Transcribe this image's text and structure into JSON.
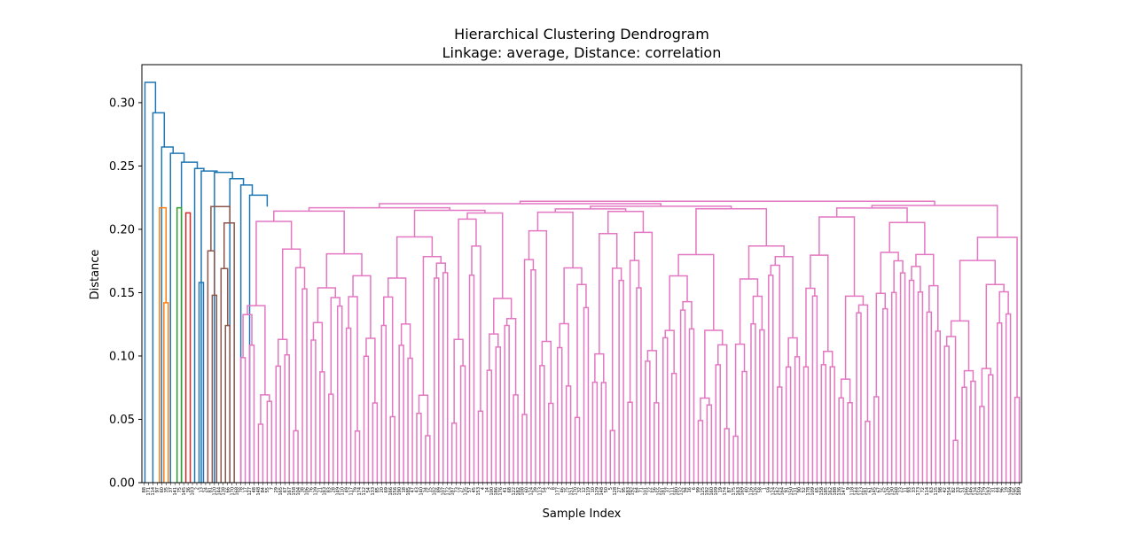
{
  "chart_data": {
    "type": "dendrogram",
    "title": "Hierarchical Clustering Dendrogram",
    "subtitle": "Linkage: average, Distance: correlation",
    "xlabel": "Sample Index",
    "ylabel": "Distance",
    "ylim": [
      0,
      0.33
    ],
    "yticks": [
      "0.00",
      "0.05",
      "0.10",
      "0.15",
      "0.20",
      "0.25",
      "0.30"
    ],
    "grid": false,
    "n_leaves": 200,
    "colors": {
      "root": "#1f77b4",
      "c1": "#ff7f0e",
      "c2": "#2ca02c",
      "c3": "#d62728",
      "c4": "#8c564b",
      "c5": "#e377c2",
      "axis": "#000000"
    },
    "leaf_labels": [
      "88",
      "171",
      "114",
      "97",
      "60",
      "35",
      "37",
      "141",
      "75",
      "145",
      "36",
      "103",
      "2",
      "13",
      "24",
      "81",
      "120",
      "144",
      "138",
      "66",
      "170",
      "168",
      "78",
      "17",
      "127",
      "48",
      "148",
      "84",
      "55",
      "7",
      "29",
      "165",
      "67",
      "167",
      "158",
      "104",
      "38",
      "106",
      "76",
      "139",
      "21",
      "183",
      "83",
      "28",
      "149",
      "110",
      "49",
      "117",
      "79",
      "174",
      "112",
      "54",
      "133",
      "85",
      "20",
      "69",
      "166",
      "156",
      "190",
      "18",
      "185",
      "47",
      "43",
      "140",
      "34",
      "15",
      "102",
      "89",
      "107",
      "172",
      "187",
      "73",
      "27",
      "135",
      "57",
      "45",
      "153",
      "4",
      "14",
      "100",
      "186",
      "176",
      "41",
      "68",
      "122",
      "182",
      "108",
      "60",
      "124",
      "39",
      "113",
      "54",
      "3",
      "8",
      "177",
      "46",
      "75",
      "151",
      "170",
      "32",
      "12",
      "119",
      "10",
      "129",
      "148",
      "50",
      "5",
      "128",
      "27",
      "95",
      "183",
      "192",
      "64",
      "71",
      "101",
      "22",
      "56",
      "155",
      "181",
      "37",
      "111",
      "180",
      "132",
      "94",
      "16",
      "6",
      "99",
      "125",
      "192",
      "160",
      "109",
      "19",
      "174",
      "87",
      "175",
      "163",
      "169",
      "40",
      "116",
      "126",
      "58",
      "1",
      "59",
      "124",
      "142",
      "164",
      "91",
      "150",
      "131",
      "90",
      "52",
      "178",
      "109",
      "65",
      "158",
      "185",
      "162",
      "188",
      "136",
      "147",
      "9",
      "118",
      "144",
      "123",
      "181",
      "61",
      "145",
      "67",
      "25",
      "126",
      "130",
      "168",
      "23",
      "11",
      "93",
      "33",
      "173",
      "72",
      "114",
      "63",
      "115",
      "98",
      "42",
      "154",
      "82",
      "33",
      "51",
      "166",
      "146",
      "134",
      "159",
      "179",
      "193",
      "31",
      "44",
      "96",
      "19",
      "199",
      "195",
      "189"
    ],
    "clusters": [
      {
        "name": "c1",
        "color": "#ff7f0e",
        "leaf_count": 3
      },
      {
        "name": "c2",
        "color": "#2ca02c",
        "leaf_count": 2
      },
      {
        "name": "c3",
        "color": "#d62728",
        "leaf_count": 2
      },
      {
        "name": "c4",
        "color": "#8c564b",
        "leaf_count": 7
      },
      {
        "name": "c5",
        "color": "#e377c2",
        "leaf_count": 175
      }
    ],
    "links": [
      {
        "x": [
          3,
          4,
          5
        ],
        "h": [
          0,
          0.142,
          0
        ],
        "c": "c1"
      },
      {
        "x": [
          2,
          4,
          6
        ],
        "h": [
          0,
          0.217,
          0.142
        ],
        "c": "c1"
      },
      {
        "x": [
          7,
          8
        ],
        "h": [
          0,
          0.217,
          0
        ],
        "c": "c2"
      },
      {
        "x": [
          9,
          10
        ],
        "h": [
          0,
          0.213,
          0
        ],
        "c": "c3"
      },
      {
        "x": [
          12,
          13
        ],
        "h": [
          0,
          0.158,
          0
        ],
        "c": "root"
      },
      {
        "x": [
          15,
          16
        ],
        "h": [
          0,
          0.148,
          0
        ],
        "c": "c4"
      },
      {
        "x": [
          14,
          15.5
        ],
        "h": [
          0,
          0.183,
          0.148
        ],
        "c": "c4"
      },
      {
        "x": [
          18,
          19
        ],
        "h": [
          0,
          0.124,
          0
        ],
        "c": "c4"
      },
      {
        "x": [
          17,
          18.5
        ],
        "h": [
          0,
          0.169,
          0.124
        ],
        "c": "c4"
      },
      {
        "x": [
          17.75,
          20
        ],
        "h": [
          0.169,
          0.205,
          0
        ],
        "c": "c4"
      },
      {
        "x": [
          14.75,
          18.9
        ],
        "h": [
          0.183,
          0.218,
          0.205
        ],
        "c": "c4"
      },
      {
        "x": [
          0,
          1
        ],
        "h": [
          0,
          0.316,
          0
        ],
        "c": "root"
      },
      {
        "x": [
          1,
          2
        ],
        "h": [
          0,
          0.292,
          0
        ],
        "c": "root"
      },
      {
        "x": [
          2,
          3
        ],
        "h": [
          0,
          0.265,
          0
        ],
        "c": "root"
      },
      {
        "x": [
          3,
          4
        ],
        "h": [
          0,
          0.26,
          0
        ],
        "c": "root"
      },
      {
        "x": [
          4,
          5
        ],
        "h": [
          0,
          0.253,
          0
        ],
        "c": "root"
      },
      {
        "x": [
          5,
          6
        ],
        "h": [
          0,
          0.248,
          0
        ],
        "c": "root"
      },
      {
        "x": [
          6,
          7
        ],
        "h": [
          0,
          0.246,
          0
        ],
        "c": "root"
      },
      {
        "x": [
          7,
          8
        ],
        "h": [
          0,
          0.245,
          0
        ],
        "c": "root"
      },
      {
        "x": [
          8,
          9
        ],
        "h": [
          0,
          0.24,
          0
        ],
        "c": "root"
      },
      {
        "x": [
          9,
          10
        ],
        "h": [
          0,
          0.235,
          0
        ],
        "c": "root"
      },
      {
        "x": [
          10,
          11
        ],
        "h": [
          0,
          0.227,
          0
        ],
        "c": "root"
      }
    ]
  }
}
